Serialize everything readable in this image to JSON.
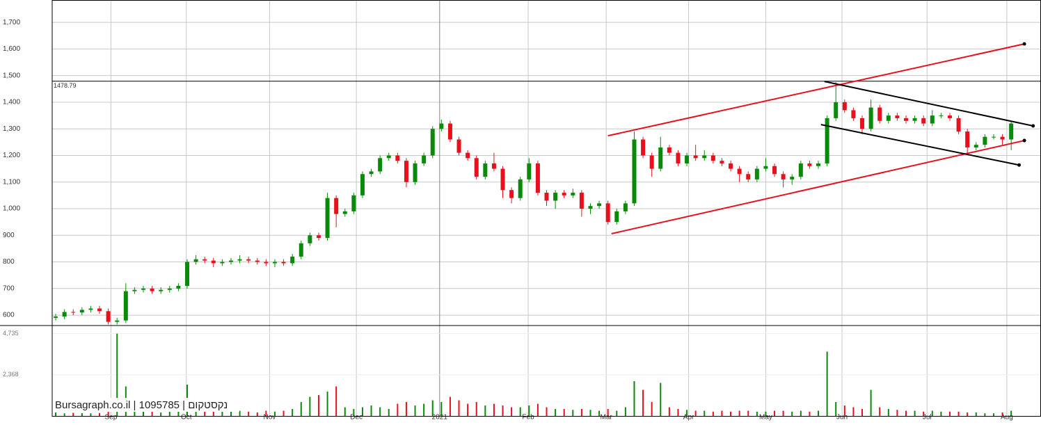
{
  "chart_data": {
    "type": "candlestick",
    "ylim": [
      561,
      1784
    ],
    "yticks": [
      600,
      700,
      800,
      900,
      {
        "value": 1000,
        "label": "1,000"
      },
      {
        "value": 1100,
        "label": "1,100"
      },
      {
        "value": 1200,
        "label": "1,200"
      },
      {
        "value": 1300,
        "label": "1,300"
      },
      {
        "value": 1400,
        "label": "1,400"
      },
      {
        "value": 1500,
        "label": "1,500"
      },
      {
        "value": 1600,
        "label": "1,600"
      },
      {
        "value": 1700,
        "label": "1,700"
      }
    ],
    "xlim": [
      -0.4,
      112.4
    ],
    "xticks": [
      {
        "value": 6.3,
        "label": "Sep"
      },
      {
        "value": 14.9,
        "label": "Oct"
      },
      {
        "value": 24.4,
        "label": "Nov"
      },
      {
        "value": 34.3,
        "label": "Dec"
      },
      {
        "value": 43.8,
        "label": "2021"
      },
      {
        "value": 53.9,
        "label": "Feb"
      },
      {
        "value": 62.8,
        "label": "Mar"
      },
      {
        "value": 72.2,
        "label": "Apr"
      },
      {
        "value": 81,
        "label": "May"
      },
      {
        "value": 89.7,
        "label": "Jun"
      },
      {
        "value": 99.4,
        "label": "Jul"
      },
      {
        "value": 108.5,
        "label": "Aug"
      }
    ],
    "grid": true,
    "up_color": "#0a8a0a",
    "down_color": "#e8101c",
    "open": [
      590,
      595,
      612,
      610,
      620,
      625,
      615,
      575,
      580,
      690,
      695,
      700,
      690,
      695,
      700,
      710,
      800,
      810,
      805,
      795,
      800,
      805,
      810,
      805,
      800,
      795,
      800,
      795,
      820,
      870,
      900,
      890,
      1040,
      980,
      990,
      1050,
      1130,
      1140,
      1190,
      1200,
      1180,
      1100,
      1170,
      1200,
      1300,
      1320,
      1260,
      1210,
      1190,
      1120,
      1170,
      1150,
      1070,
      1040,
      1110,
      1170,
      1060,
      1030,
      1060,
      1050,
      1060,
      1000,
      1010,
      1020,
      950,
      990,
      1020,
      1260,
      1200,
      1150,
      1230,
      1210,
      1170,
      1200,
      1190,
      1200,
      1180,
      1170,
      1150,
      1130,
      1110,
      1150,
      1160,
      1130,
      1110,
      1120,
      1170,
      1160,
      1170,
      1340,
      1400,
      1370,
      1340,
      1300,
      1380,
      1330,
      1350,
      1340,
      1330,
      1340,
      1320,
      1350,
      1350,
      1340,
      1290,
      1230,
      1240,
      1270,
      1270,
      1260
    ],
    "high": [
      605,
      622,
      622,
      630,
      635,
      635,
      625,
      590,
      720,
      705,
      710,
      710,
      705,
      710,
      720,
      810,
      825,
      820,
      815,
      810,
      815,
      825,
      820,
      815,
      810,
      810,
      810,
      830,
      880,
      910,
      910,
      1060,
      1050,
      1000,
      1060,
      1140,
      1150,
      1200,
      1210,
      1210,
      1190,
      1180,
      1210,
      1310,
      1335,
      1330,
      1270,
      1220,
      1200,
      1180,
      1210,
      1160,
      1080,
      1120,
      1190,
      1180,
      1070,
      1070,
      1070,
      1075,
      1070,
      1020,
      1030,
      1030,
      1000,
      1030,
      1290,
      1270,
      1210,
      1270,
      1240,
      1220,
      1210,
      1240,
      1220,
      1210,
      1190,
      1180,
      1160,
      1140,
      1160,
      1190,
      1170,
      1140,
      1130,
      1180,
      1180,
      1180,
      1350,
      1475,
      1410,
      1380,
      1350,
      1410,
      1390,
      1360,
      1360,
      1350,
      1350,
      1350,
      1370,
      1360,
      1360,
      1350,
      1300,
      1250,
      1280,
      1280,
      1280,
      1330
    ],
    "low": [
      580,
      585,
      600,
      600,
      610,
      605,
      565,
      565,
      570,
      680,
      685,
      680,
      680,
      685,
      690,
      700,
      790,
      795,
      780,
      785,
      790,
      795,
      795,
      790,
      785,
      780,
      785,
      785,
      810,
      860,
      880,
      880,
      930,
      970,
      980,
      1040,
      1120,
      1130,
      1180,
      1170,
      1080,
      1090,
      1160,
      1190,
      1290,
      1250,
      1200,
      1180,
      1110,
      1110,
      1140,
      1040,
      1020,
      1030,
      1100,
      1050,
      1010,
      1000,
      1040,
      1040,
      970,
      980,
      1000,
      940,
      940,
      980,
      1010,
      1190,
      1120,
      1140,
      1200,
      1160,
      1160,
      1180,
      1180,
      1170,
      1160,
      1140,
      1100,
      1100,
      1100,
      1140,
      1120,
      1080,
      1090,
      1110,
      1150,
      1150,
      1160,
      1330,
      1360,
      1330,
      1280,
      1290,
      1320,
      1320,
      1330,
      1320,
      1320,
      1310,
      1310,
      1340,
      1330,
      1280,
      1210,
      1220,
      1230,
      1260,
      1240,
      1220
    ],
    "close": [
      595,
      612,
      610,
      620,
      625,
      615,
      575,
      580,
      690,
      695,
      700,
      690,
      695,
      700,
      710,
      800,
      810,
      805,
      795,
      800,
      805,
      810,
      805,
      800,
      795,
      800,
      795,
      820,
      870,
      900,
      890,
      1040,
      980,
      990,
      1050,
      1130,
      1140,
      1190,
      1200,
      1180,
      1100,
      1170,
      1200,
      1300,
      1320,
      1260,
      1210,
      1190,
      1120,
      1170,
      1150,
      1070,
      1040,
      1110,
      1170,
      1060,
      1030,
      1060,
      1050,
      1060,
      1000,
      1010,
      1020,
      950,
      990,
      1020,
      1260,
      1200,
      1150,
      1230,
      1210,
      1170,
      1200,
      1190,
      1200,
      1180,
      1170,
      1150,
      1130,
      1110,
      1150,
      1160,
      1130,
      1110,
      1120,
      1170,
      1160,
      1170,
      1340,
      1400,
      1370,
      1340,
      1300,
      1380,
      1330,
      1350,
      1340,
      1330,
      1340,
      1320,
      1350,
      1350,
      1340,
      1290,
      1230,
      1240,
      1270,
      1270,
      1260,
      1320
    ],
    "volume": [
      200,
      150,
      180,
      160,
      150,
      170,
      300,
      4735,
      1700,
      400,
      300,
      250,
      200,
      250,
      300,
      1800,
      600,
      400,
      300,
      250,
      250,
      300,
      250,
      200,
      300,
      250,
      300,
      400,
      800,
      1100,
      1200,
      1400,
      1700,
      500,
      400,
      500,
      600,
      500,
      400,
      700,
      800,
      600,
      700,
      900,
      800,
      1100,
      900,
      700,
      800,
      600,
      700,
      600,
      500,
      500,
      600,
      700,
      500,
      400,
      400,
      350,
      400,
      350,
      300,
      400,
      300,
      500,
      2000,
      1500,
      800,
      1900,
      500,
      400,
      350,
      300,
      300,
      250,
      300,
      250,
      300,
      300,
      250,
      250,
      300,
      300,
      250,
      300,
      250,
      300,
      3700,
      800,
      600,
      500,
      400,
      1500,
      500,
      400,
      350,
      300,
      300,
      250,
      300,
      250,
      250,
      250,
      200,
      200,
      150,
      150,
      200,
      300
    ],
    "volume_ylim": [
      0,
      5200
    ],
    "volume_ticks": [
      {
        "value": 2368,
        "label": "2,368"
      },
      {
        "value": 4735,
        "label": "4,735"
      }
    ],
    "horizontal_line": {
      "value": 1478.79,
      "color": "#000000"
    },
    "trendlines": [
      {
        "color": "#e8101c",
        "x": [
          63.0,
          110.5
        ],
        "y": [
          1274,
          1619
        ]
      },
      {
        "color": "#e8101c",
        "x": [
          63.4,
          110.5
        ],
        "y": [
          906,
          1256
        ]
      },
      {
        "color": "#000000",
        "x": [
          87.7,
          111.5
        ],
        "y": [
          1478,
          1311
        ]
      },
      {
        "color": "#000000",
        "x": [
          87.3,
          109.9
        ],
        "y": [
          1316,
          1164
        ]
      }
    ],
    "watermark": "Bursagraph.co.il | 1095785 | נקסטקום"
  }
}
